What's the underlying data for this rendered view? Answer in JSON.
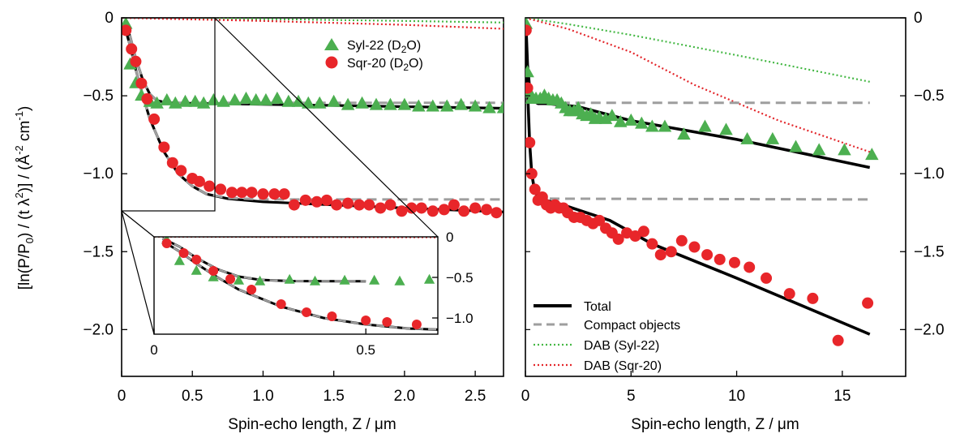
{
  "figure": {
    "y_axis_label_main": "[ln(P/P",
    "y_axis_label_sub0": "0",
    "y_axis_label_mid": ") / (t λ",
    "y_axis_label_sup2": "2",
    "y_axis_label_end": ")] / (Å",
    "y_axis_label_sup_unit": "-2",
    "y_axis_label_tail": " cm",
    "y_axis_label_sup_tail": "-1",
    "y_axis_label_close": ")"
  },
  "legend_left": {
    "syl_label": "Syl-22 (D",
    "syl_sub": "2",
    "syl_end": "O)",
    "sqr_label": "Sqr-20 (D",
    "sqr_sub": "2",
    "sqr_end": "O)"
  },
  "legend_right": {
    "total": "Total",
    "compact": "Compact objects",
    "dab_syl": "DAB (Syl-22)",
    "dab_sqr": "DAB (Sqr-20)"
  },
  "colors": {
    "syl_green": "#4caf50",
    "sqr_red": "#e8262a",
    "dab_green": "#45b845",
    "dab_red": "#e3262b",
    "compact_gray": "#9e9e9e",
    "total_black": "#000000"
  },
  "chart_data": [
    {
      "type": "scatter",
      "panel": "left",
      "xlabel": "Spin-echo length, Z / μm",
      "ylabel": "[ln(P/P0) / (t λ2)] / (Å-2 cm-1)",
      "xlim": [
        0,
        2.7
      ],
      "ylim": [
        -2.3,
        0
      ],
      "xticks": [
        0,
        0.5,
        1.0,
        1.5,
        2.0,
        2.5
      ],
      "xtick_labels": [
        "0",
        "0.5",
        "1.0",
        "1.5",
        "2.0",
        "2.5"
      ],
      "yticks": [
        0,
        -0.5,
        -1.0,
        -1.5,
        -2.0
      ],
      "ytick_labels": [
        "0",
        "−0.5",
        "−1.0",
        "−1.5",
        "−2.0"
      ],
      "legend_position": "top-right",
      "series": [
        {
          "name": "Syl-22 (D2O)",
          "marker": "triangle",
          "x": [
            0.03,
            0.06,
            0.1,
            0.14,
            0.2,
            0.25,
            0.32,
            0.38,
            0.45,
            0.52,
            0.58,
            0.65,
            0.72,
            0.8,
            0.88,
            0.95,
            1.02,
            1.1,
            1.18,
            1.25,
            1.32,
            1.4,
            1.5,
            1.6,
            1.7,
            1.8,
            1.9,
            2.0,
            2.1,
            2.2,
            2.3,
            2.4,
            2.5,
            2.6,
            2.7
          ],
          "y": [
            -0.04,
            -0.3,
            -0.42,
            -0.5,
            -0.54,
            -0.55,
            -0.53,
            -0.55,
            -0.54,
            -0.54,
            -0.55,
            -0.53,
            -0.54,
            -0.53,
            -0.52,
            -0.53,
            -0.53,
            -0.52,
            -0.54,
            -0.54,
            -0.55,
            -0.55,
            -0.54,
            -0.56,
            -0.55,
            -0.56,
            -0.56,
            -0.56,
            -0.57,
            -0.57,
            -0.57,
            -0.56,
            -0.57,
            -0.58,
            -0.58
          ]
        },
        {
          "name": "Sqr-20 (D2O)",
          "marker": "circle",
          "x": [
            0.03,
            0.07,
            0.1,
            0.14,
            0.18,
            0.23,
            0.3,
            0.36,
            0.42,
            0.5,
            0.55,
            0.62,
            0.7,
            0.78,
            0.85,
            0.92,
            1.0,
            1.08,
            1.15,
            1.22,
            1.3,
            1.38,
            1.45,
            1.52,
            1.6,
            1.68,
            1.75,
            1.83,
            1.9,
            1.98,
            2.05,
            2.12,
            2.2,
            2.28,
            2.35,
            2.42,
            2.5,
            2.58,
            2.65
          ],
          "y": [
            -0.08,
            -0.2,
            -0.28,
            -0.42,
            -0.52,
            -0.65,
            -0.83,
            -0.93,
            -0.98,
            -1.03,
            -1.05,
            -1.08,
            -1.1,
            -1.12,
            -1.12,
            -1.12,
            -1.13,
            -1.13,
            -1.13,
            -1.2,
            -1.17,
            -1.18,
            -1.17,
            -1.2,
            -1.19,
            -1.2,
            -1.2,
            -1.22,
            -1.2,
            -1.24,
            -1.22,
            -1.22,
            -1.24,
            -1.23,
            -1.2,
            -1.24,
            -1.22,
            -1.23,
            -1.25
          ]
        }
      ],
      "inset": {
        "xlim": [
          0,
          0.67
        ],
        "ylim": [
          -1.2,
          0
        ],
        "xticks": [
          0,
          0.5
        ],
        "xtick_labels": [
          "0",
          "0.5"
        ],
        "yticks": [
          0,
          -0.5,
          -1.0
        ],
        "ytick_labels": [
          "0",
          "−0.5",
          "−1.0"
        ]
      }
    },
    {
      "type": "scatter",
      "panel": "right",
      "xlabel": "Spin-echo length, Z / μm",
      "xlim": [
        0,
        18
      ],
      "ylim": [
        -2.3,
        0
      ],
      "xticks": [
        0,
        5,
        10,
        15
      ],
      "xtick_labels": [
        "0",
        "5",
        "10",
        "15"
      ],
      "yticks": [
        0,
        -0.5,
        -1.0,
        -1.5,
        -2.0
      ],
      "ytick_labels": [
        "0",
        "−0.5",
        "−1.0",
        "−1.5",
        "−2.0"
      ],
      "legend_position": "bottom-left",
      "series": [
        {
          "name": "Syl-22 (D2O)",
          "marker": "triangle",
          "x": [
            0.03,
            0.1,
            0.2,
            0.3,
            0.5,
            0.7,
            0.9,
            1.1,
            1.3,
            1.5,
            1.7,
            1.9,
            2.1,
            2.3,
            2.5,
            2.7,
            2.9,
            3.1,
            3.3,
            3.5,
            3.8,
            4.1,
            4.5,
            5.0,
            5.5,
            6.0,
            6.6,
            7.5,
            8.5,
            9.5,
            10.5,
            11.7,
            12.8,
            13.9,
            15.1,
            16.4
          ],
          "y": [
            -0.04,
            -0.35,
            -0.48,
            -0.52,
            -0.52,
            -0.52,
            -0.5,
            -0.52,
            -0.53,
            -0.53,
            -0.55,
            -0.58,
            -0.6,
            -0.6,
            -0.58,
            -0.62,
            -0.63,
            -0.62,
            -0.65,
            -0.64,
            -0.65,
            -0.63,
            -0.67,
            -0.66,
            -0.68,
            -0.7,
            -0.7,
            -0.75,
            -0.7,
            -0.72,
            -0.78,
            -0.78,
            -0.83,
            -0.85,
            -0.85,
            -0.88
          ]
        },
        {
          "name": "Sqr-20 (D2O)",
          "marker": "circle",
          "x": [
            0.03,
            0.1,
            0.2,
            0.3,
            0.45,
            0.6,
            0.8,
            1.0,
            1.2,
            1.4,
            1.6,
            1.8,
            2.0,
            2.3,
            2.6,
            2.9,
            3.2,
            3.5,
            3.8,
            4.1,
            4.4,
            4.8,
            5.2,
            5.6,
            6.0,
            6.4,
            6.9,
            7.4,
            8.0,
            8.6,
            9.2,
            9.9,
            10.6,
            11.4,
            12.5,
            13.6,
            14.8,
            16.2
          ],
          "y": [
            -0.08,
            -0.45,
            -0.8,
            -1.0,
            -1.1,
            -1.17,
            -1.15,
            -1.2,
            -1.22,
            -1.2,
            -1.22,
            -1.22,
            -1.25,
            -1.28,
            -1.28,
            -1.3,
            -1.32,
            -1.3,
            -1.35,
            -1.38,
            -1.42,
            -1.38,
            -1.4,
            -1.37,
            -1.45,
            -1.52,
            -1.5,
            -1.43,
            -1.47,
            -1.52,
            -1.55,
            -1.57,
            -1.6,
            -1.67,
            -1.77,
            -1.8,
            -2.07,
            -1.83
          ]
        }
      ]
    }
  ]
}
